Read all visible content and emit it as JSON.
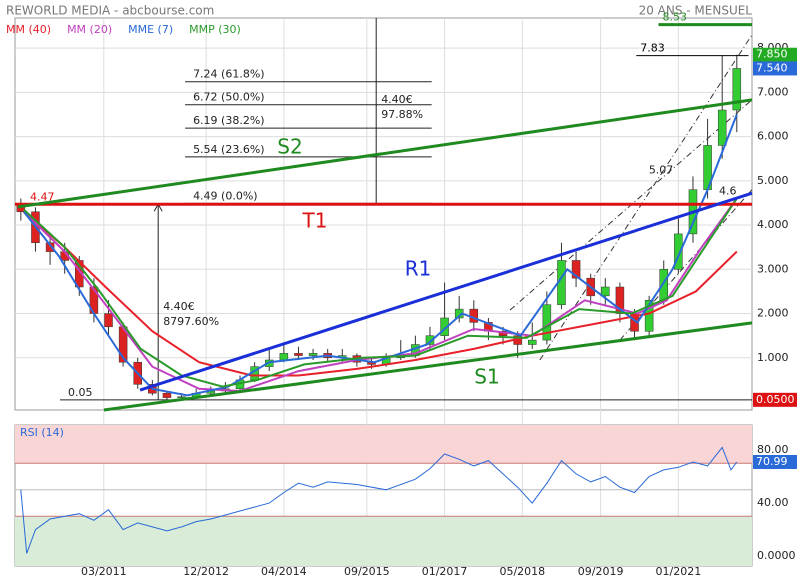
{
  "header": {
    "title": "REWORLD MEDIA - abcbourse.com",
    "period": "20 ANS - MENSUEL"
  },
  "chart_data": [
    {
      "type": "candlestick",
      "xlim": [
        2009.65,
        2022.26
      ],
      "ylim": [
        -0.18,
        8.68
      ],
      "xticks": [
        {
          "value": 2011.17,
          "label": "03/2011"
        },
        {
          "value": 2012.92,
          "label": "12/2012"
        },
        {
          "value": 2014.25,
          "label": "04/2014"
        },
        {
          "value": 2015.67,
          "label": "09/2015"
        },
        {
          "value": 2017.0,
          "label": "01/2017"
        },
        {
          "value": 2018.33,
          "label": "05/2018"
        },
        {
          "value": 2019.67,
          "label": "09/2019"
        },
        {
          "value": 2021.0,
          "label": "01/2021"
        }
      ],
      "yticks": [
        {
          "value": 1,
          "label": "1.000"
        },
        {
          "value": 2,
          "label": "2.000"
        },
        {
          "value": 3,
          "label": "3.000"
        },
        {
          "value": 4,
          "label": "4.000"
        },
        {
          "value": 5,
          "label": "5.000"
        },
        {
          "value": 6,
          "label": "6.000"
        },
        {
          "value": 7,
          "label": "7.000"
        },
        {
          "value": 8,
          "label": "8.000"
        }
      ],
      "grid": true,
      "up_color": "#33cc33",
      "down_color": "#dd2222",
      "x": [
        2009.75,
        2010,
        2010.25,
        2010.5,
        2010.75,
        2011,
        2011.25,
        2011.5,
        2011.75,
        2012,
        2012.25,
        2012.5,
        2012.75,
        2013,
        2013.25,
        2013.5,
        2013.75,
        2014,
        2014.25,
        2014.5,
        2014.75,
        2015,
        2015.25,
        2015.5,
        2015.75,
        2016,
        2016.25,
        2016.5,
        2016.75,
        2017,
        2017.25,
        2017.5,
        2017.75,
        2018,
        2018.25,
        2018.5,
        2018.75,
        2019,
        2019.25,
        2019.5,
        2019.75,
        2020,
        2020.25,
        2020.5,
        2020.75,
        2021,
        2021.25,
        2021.5,
        2021.75,
        2022
      ],
      "open": [
        4.45,
        4.3,
        3.6,
        3.4,
        3.2,
        2.6,
        2.0,
        1.7,
        0.9,
        0.4,
        0.2,
        0.1,
        0.12,
        0.2,
        0.25,
        0.3,
        0.5,
        0.8,
        0.95,
        1.1,
        1.05,
        1.1,
        1.0,
        1.05,
        0.9,
        0.85,
        1.0,
        1.05,
        1.3,
        1.5,
        1.9,
        2.1,
        1.8,
        1.6,
        1.5,
        1.3,
        1.4,
        2.2,
        3.2,
        2.8,
        2.4,
        2.6,
        2.0,
        1.6,
        2.3,
        3.0,
        3.8,
        4.8,
        5.8,
        6.6
      ],
      "high": [
        4.6,
        4.4,
        3.8,
        3.6,
        3.3,
        2.8,
        2.3,
        1.8,
        1.0,
        0.5,
        0.25,
        0.2,
        0.3,
        0.35,
        0.45,
        0.6,
        0.9,
        1.2,
        1.35,
        1.25,
        1.2,
        1.2,
        1.2,
        1.1,
        1.0,
        1.1,
        1.4,
        1.5,
        1.7,
        2.7,
        2.4,
        2.3,
        1.9,
        1.7,
        1.6,
        1.8,
        2.5,
        3.6,
        3.4,
        2.9,
        2.8,
        2.7,
        2.1,
        2.4,
        3.2,
        4.2,
        5.1,
        6.4,
        7.83,
        7.85
      ],
      "low": [
        4.1,
        3.4,
        3.1,
        2.9,
        2.4,
        1.8,
        1.5,
        0.8,
        0.3,
        0.15,
        0.05,
        0.05,
        0.1,
        0.15,
        0.2,
        0.25,
        0.45,
        0.7,
        0.9,
        0.95,
        0.95,
        0.9,
        0.9,
        0.8,
        0.75,
        0.8,
        0.95,
        1.0,
        1.2,
        1.4,
        1.8,
        1.6,
        1.4,
        1.3,
        1.0,
        1.2,
        1.3,
        2.1,
        2.6,
        2.2,
        2.2,
        1.8,
        1.4,
        1.5,
        2.2,
        2.9,
        3.6,
        4.6,
        5.5,
        6.1
      ],
      "close": [
        4.3,
        3.6,
        3.4,
        3.2,
        2.6,
        2.0,
        1.7,
        0.9,
        0.4,
        0.2,
        0.1,
        0.12,
        0.2,
        0.25,
        0.3,
        0.5,
        0.8,
        0.95,
        1.1,
        1.05,
        1.1,
        1.0,
        1.05,
        0.9,
        0.85,
        1.0,
        1.05,
        1.3,
        1.5,
        1.9,
        2.1,
        1.8,
        1.6,
        1.5,
        1.3,
        1.4,
        2.2,
        3.2,
        2.8,
        2.4,
        2.6,
        2.0,
        1.6,
        2.3,
        3.0,
        3.8,
        4.8,
        5.8,
        6.6,
        7.54
      ],
      "series": [
        {
          "name": "MM (40)",
          "color": "#e8202a",
          "x": [
            2009.8,
            2010.5,
            2011.2,
            2012,
            2012.8,
            2013.7,
            2014.5,
            2015.5,
            2016.5,
            2017.5,
            2018.5,
            2019.5,
            2020.5,
            2021.3,
            2022
          ],
          "values": [
            4.3,
            3.5,
            2.6,
            1.6,
            0.9,
            0.6,
            0.6,
            0.75,
            0.95,
            1.2,
            1.5,
            1.75,
            2.0,
            2.5,
            3.4
          ]
        },
        {
          "name": "MM (20)",
          "color": "#c040c0",
          "x": [
            2009.8,
            2010.5,
            2011.2,
            2012,
            2012.8,
            2013.5,
            2014.5,
            2015.5,
            2016.5,
            2017.5,
            2018.5,
            2019.4,
            2020.3,
            2020.8,
            2021.4,
            2022
          ],
          "values": [
            4.3,
            3.4,
            2.2,
            0.8,
            0.3,
            0.25,
            0.7,
            0.95,
            1.1,
            1.65,
            1.5,
            2.3,
            2.0,
            2.3,
            3.5,
            4.6
          ]
        },
        {
          "name": "MME (7)",
          "color": "#2a6ad8",
          "x": [
            2009.8,
            2010.4,
            2011,
            2011.5,
            2012,
            2012.6,
            2013.3,
            2014,
            2015,
            2015.8,
            2016.7,
            2017.3,
            2018.3,
            2019.1,
            2019.8,
            2020.3,
            2020.9,
            2021.5,
            2022
          ],
          "values": [
            4.3,
            3.3,
            2.0,
            1.0,
            0.3,
            0.15,
            0.35,
            0.9,
            1.05,
            0.9,
            1.3,
            2.0,
            1.5,
            3.0,
            2.3,
            1.8,
            3.0,
            4.8,
            6.5
          ]
        },
        {
          "name": "MMP (30)",
          "color": "#2a9a2a",
          "x": [
            2009.8,
            2010.5,
            2011.1,
            2011.8,
            2012.5,
            2013.2,
            2013.8,
            2014.6,
            2015.6,
            2016.5,
            2017.4,
            2018.4,
            2019.3,
            2020.2,
            2020.9,
            2021.5,
            2022
          ],
          "values": [
            4.35,
            3.5,
            2.5,
            1.2,
            0.6,
            0.35,
            0.5,
            0.85,
            1.0,
            1.05,
            1.5,
            1.45,
            2.1,
            2.0,
            2.4,
            3.6,
            4.6
          ]
        }
      ],
      "trendlines": [
        {
          "name": "T1",
          "color": "#dd1111",
          "x": [
            2009.65,
            2022.26
          ],
          "y": [
            4.47,
            4.47
          ]
        },
        {
          "name": "R1",
          "color": "#1a2fd8",
          "x": [
            2011.79,
            2022.26
          ],
          "y": [
            0.27,
            4.72
          ]
        },
        {
          "name": "S1",
          "color": "#1f8a1f",
          "x": [
            2011.17,
            2022.26
          ],
          "y": [
            -0.18,
            1.79
          ]
        },
        {
          "name": "S2",
          "color": "#1f8a1f",
          "x": [
            2009.7,
            2022.26
          ],
          "y": [
            4.41,
            6.83
          ]
        }
      ],
      "channels": [
        {
          "x": [
            2018.63,
            2022.26
          ],
          "y": [
            0.95,
            8.3
          ]
        },
        {
          "x": [
            2018.12,
            2022.26
          ],
          "y": [
            2.08,
            6.83
          ]
        },
        {
          "x": [
            2020.0,
            2022.26
          ],
          "y": [
            1.4,
            4.8
          ]
        }
      ],
      "fib_x": [
        2012.56,
        2016.78
      ],
      "levels": [
        {
          "value": 7.24,
          "label": "7.24  (61.8%)"
        },
        {
          "value": 6.72,
          "label": "6.72  (50.0%)"
        },
        {
          "value": 6.19,
          "label": "6.19  (38.2%)"
        },
        {
          "value": 5.54,
          "label": "5.54  (23.6%)"
        },
        {
          "value": 4.49,
          "label": "4.49  (0.0%)"
        }
      ],
      "marks": [
        {
          "x": [
            2020.28,
            2022.2
          ],
          "y": 7.83,
          "color": "#000"
        },
        {
          "x": [
            2020.66,
            2022.26
          ],
          "y": 8.53,
          "color": "#1f8a1f"
        }
      ],
      "point_labels": [
        {
          "x": 2020.7,
          "y": 5.07
        },
        {
          "x": 2021.9,
          "y": 4.6
        }
      ],
      "measures": [
        {
          "x": 2012.1,
          "from": 0.05,
          "to": 4.47,
          "labels": [
            "4.40€",
            "8797.60%"
          ]
        },
        {
          "x": 2015.83,
          "from": 4.49,
          "to": 8.68,
          "labels": [
            "4.40€",
            "97.88%"
          ]
        }
      ],
      "floor": {
        "value": 0.05,
        "label": "0.0500",
        "text": "0.05"
      },
      "last_high": {
        "value": 7.85,
        "label": "7.850",
        "color": "#22aa22"
      },
      "last_close": {
        "value": 7.54,
        "label": "7.540",
        "color": "#2a6ad8"
      }
    },
    {
      "type": "line",
      "title": "RSI (14)",
      "xlim": [
        2009.65,
        2022.26
      ],
      "ylim": [
        -7.5,
        98.9
      ],
      "yticks": [
        {
          "value": 0,
          "label": "0.0000"
        },
        {
          "value": 40,
          "label": "40.00"
        },
        {
          "value": 80,
          "label": "80.00"
        }
      ],
      "levels": [
        70,
        50,
        30
      ],
      "zone_colors": [
        "#f9d5d5",
        "#d8ecd8"
      ],
      "series": [
        {
          "name": "RSI (14)",
          "color": "#2a6ad8",
          "x": [
            2009.75,
            2009.85,
            2010,
            2010.25,
            2010.5,
            2010.75,
            2011,
            2011.25,
            2011.5,
            2011.75,
            2012,
            2012.25,
            2012.5,
            2012.75,
            2013,
            2013.5,
            2014,
            2014.25,
            2014.5,
            2014.75,
            2015,
            2015.5,
            2016,
            2016.5,
            2016.75,
            2017,
            2017.25,
            2017.5,
            2017.75,
            2018,
            2018.25,
            2018.5,
            2018.75,
            2019,
            2019.25,
            2019.5,
            2019.75,
            2020,
            2020.25,
            2020.5,
            2020.75,
            2021,
            2021.25,
            2021.5,
            2021.75,
            2021.9,
            2022
          ],
          "values": [
            50,
            2,
            20,
            28,
            30,
            32,
            27,
            35,
            20,
            25,
            22,
            19,
            22,
            26,
            28,
            34,
            40,
            48,
            55,
            52,
            56,
            54,
            50,
            58,
            66,
            77,
            73,
            68,
            72,
            62,
            52,
            40,
            55,
            72,
            62,
            56,
            60,
            52,
            48,
            60,
            65,
            67,
            71,
            68,
            82,
            65,
            71
          ]
        }
      ],
      "last": {
        "value": 70.99,
        "label": "70.99"
      }
    }
  ]
}
